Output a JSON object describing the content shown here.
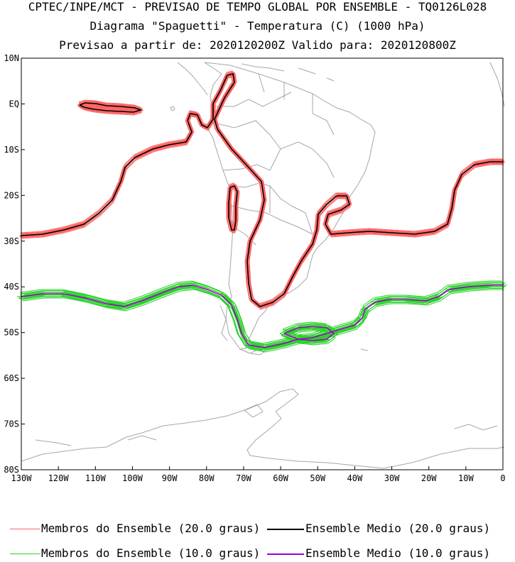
{
  "title": {
    "line1": "CPTEC/INPE/MCT - PREVISAO DE TEMPO GLOBAL POR ENSEMBLE - TQ0126L028",
    "line2": "Diagrama \"Spaguetti\" - Temperatura (C) (1000 hPa)",
    "line3": "Previsao a partir de: 2020120200Z  Valido para: 2020120800Z"
  },
  "axes": {
    "lat_ticks": [
      "10N",
      "EQ",
      "10S",
      "20S",
      "30S",
      "40S",
      "50S",
      "60S",
      "70S",
      "80S"
    ],
    "lon_ticks": [
      "130W",
      "120W",
      "110W",
      "100W",
      "90W",
      "80W",
      "70W",
      "60W",
      "50W",
      "40W",
      "30W",
      "20W",
      "10W",
      "0"
    ],
    "lat_range": [
      -80,
      10
    ],
    "lon_range": [
      -130,
      0
    ]
  },
  "legend": {
    "items": [
      {
        "label": "Membros do Ensemble (20.0 graus)",
        "color": "#ff6464"
      },
      {
        "label": "Ensemble Medio (20.0 graus)",
        "color": "#000000"
      },
      {
        "label": "Membros do Ensemble (10.0 graus)",
        "color": "#28d228"
      },
      {
        "label": "Ensemble Medio (10.0 graus)",
        "color": "#a000c8"
      }
    ]
  },
  "colors": {
    "coast": "#a6a6a6",
    "member20": "#ff6464",
    "mean20": "#000000",
    "member10": "#28d228",
    "mean10": "#a000c8"
  }
}
